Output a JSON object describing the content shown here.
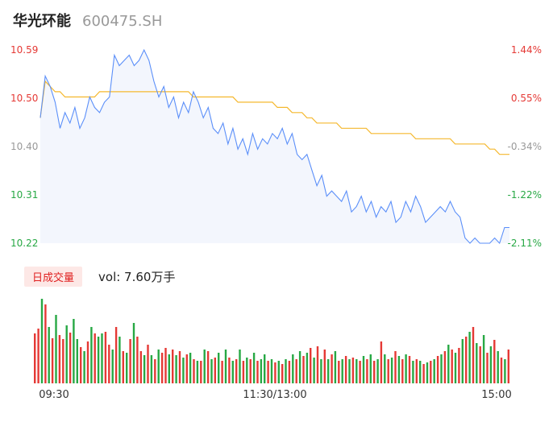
{
  "header": {
    "name": "华光环能",
    "code": "600475.SH"
  },
  "volume_tag": "日成交量",
  "volume_text": "vol: 7.60万手",
  "colors": {
    "price_line": "#5b8ff9",
    "avg_line": "#f5b82e",
    "up": "#e53935",
    "down": "#27a844",
    "neutral": "#999999",
    "area_fill": "#f3f6fd"
  },
  "chart_data": {
    "type": "line",
    "price_axis": {
      "ticks": [
        "10.59",
        "10.50",
        "10.40",
        "10.31",
        "10.22"
      ],
      "ylim": [
        10.22,
        10.59
      ]
    },
    "percent_axis": {
      "ticks": [
        "1.44%",
        "0.55%",
        "-0.34%",
        "-1.22%",
        "-2.11%"
      ]
    },
    "x_ticks": [
      "09:30",
      "11:30/13:00",
      "15:00"
    ],
    "series": [
      {
        "role": "price",
        "values": [
          10.46,
          10.54,
          10.52,
          10.49,
          10.44,
          10.47,
          10.45,
          10.48,
          10.44,
          10.46,
          10.5,
          10.48,
          10.47,
          10.49,
          10.5,
          10.58,
          10.56,
          10.57,
          10.58,
          10.56,
          10.57,
          10.59,
          10.57,
          10.53,
          10.5,
          10.52,
          10.48,
          10.5,
          10.46,
          10.49,
          10.47,
          10.51,
          10.49,
          10.46,
          10.48,
          10.44,
          10.43,
          10.45,
          10.41,
          10.44,
          10.4,
          10.42,
          10.39,
          10.43,
          10.4,
          10.42,
          10.41,
          10.43,
          10.42,
          10.44,
          10.41,
          10.43,
          10.39,
          10.38,
          10.39,
          10.36,
          10.33,
          10.35,
          10.31,
          10.32,
          10.31,
          10.3,
          10.32,
          10.28,
          10.29,
          10.31,
          10.28,
          10.3,
          10.27,
          10.29,
          10.28,
          10.3,
          10.26,
          10.27,
          10.3,
          10.28,
          10.31,
          10.29,
          10.26,
          10.27,
          10.28,
          10.29,
          10.28,
          10.3,
          10.28,
          10.27,
          10.23,
          10.22,
          10.23,
          10.22,
          10.22,
          10.22,
          10.23,
          10.22,
          10.25,
          10.25
        ],
        "label": ""
      },
      {
        "role": "average",
        "values": [
          10.46,
          10.53,
          10.52,
          10.51,
          10.51,
          10.5,
          10.5,
          10.5,
          10.5,
          10.5,
          10.5,
          10.5,
          10.51,
          10.51,
          10.51,
          10.51,
          10.51,
          10.51,
          10.51,
          10.51,
          10.51,
          10.51,
          10.51,
          10.51,
          10.51,
          10.51,
          10.51,
          10.51,
          10.51,
          10.51,
          10.51,
          10.5,
          10.5,
          10.5,
          10.5,
          10.5,
          10.5,
          10.5,
          10.5,
          10.5,
          10.49,
          10.49,
          10.49,
          10.49,
          10.49,
          10.49,
          10.49,
          10.49,
          10.48,
          10.48,
          10.48,
          10.47,
          10.47,
          10.47,
          10.46,
          10.46,
          10.45,
          10.45,
          10.45,
          10.45,
          10.45,
          10.44,
          10.44,
          10.44,
          10.44,
          10.44,
          10.44,
          10.43,
          10.43,
          10.43,
          10.43,
          10.43,
          10.43,
          10.43,
          10.43,
          10.43,
          10.42,
          10.42,
          10.42,
          10.42,
          10.42,
          10.42,
          10.42,
          10.42,
          10.41,
          10.41,
          10.41,
          10.41,
          10.41,
          10.41,
          10.41,
          10.4,
          10.4,
          10.39,
          10.39,
          10.39
        ],
        "label": ""
      }
    ],
    "volume": {
      "values": [
        62,
        68,
        105,
        98,
        70,
        56,
        85,
        60,
        55,
        72,
        63,
        80,
        55,
        45,
        40,
        52,
        70,
        62,
        58,
        62,
        64,
        48,
        42,
        70,
        58,
        40,
        38,
        55,
        75,
        58,
        40,
        35,
        48,
        35,
        30,
        42,
        38,
        44,
        36,
        42,
        35,
        40,
        32,
        36,
        38,
        30,
        28,
        28,
        42,
        40,
        30,
        32,
        38,
        28,
        42,
        32,
        28,
        30,
        42,
        28,
        32,
        30,
        38,
        28,
        30,
        36,
        28,
        30,
        26,
        28,
        24,
        30,
        28,
        36,
        30,
        40,
        34,
        38,
        44,
        32,
        46,
        30,
        42,
        30,
        36,
        40,
        28,
        30,
        34,
        30,
        32,
        30,
        28,
        34,
        30,
        36,
        28,
        30,
        52,
        36,
        30,
        32,
        40,
        34,
        30,
        36,
        34,
        28,
        30,
        28,
        24,
        26,
        28,
        30,
        34,
        36,
        40,
        48,
        42,
        38,
        44,
        55,
        58,
        64,
        70,
        50,
        46,
        60,
        38,
        46,
        54,
        40,
        32,
        30,
        42
      ],
      "up": [
        true,
        true,
        false,
        true,
        false,
        true,
        false,
        true,
        true,
        false,
        true,
        false,
        false,
        true,
        false,
        true,
        false,
        true,
        false,
        false,
        true,
        true,
        false,
        true,
        false,
        true,
        false,
        true,
        false,
        true,
        true,
        false,
        true,
        false,
        true,
        false,
        true,
        true,
        false,
        true,
        false,
        true,
        false,
        true,
        false,
        true,
        false,
        true,
        false,
        true,
        false,
        true,
        false,
        true,
        false,
        true,
        false,
        true,
        false,
        true,
        false,
        true,
        false,
        true,
        false,
        false,
        true,
        false,
        true,
        false,
        true,
        false,
        true,
        false,
        true,
        false,
        true,
        false,
        true,
        false,
        true,
        false,
        true,
        false,
        true,
        false,
        true,
        false,
        true,
        false,
        true,
        false,
        true,
        false,
        true,
        false,
        true,
        false,
        true,
        false,
        true,
        false,
        true,
        false,
        true,
        false,
        true,
        false,
        true,
        false,
        true,
        false,
        true,
        false,
        true,
        false,
        true,
        false,
        true,
        false,
        true,
        false,
        true,
        false,
        true,
        false,
        true,
        false,
        true,
        false,
        true,
        false,
        true,
        false,
        true
      ],
      "ylim": [
        0,
        110
      ]
    }
  }
}
